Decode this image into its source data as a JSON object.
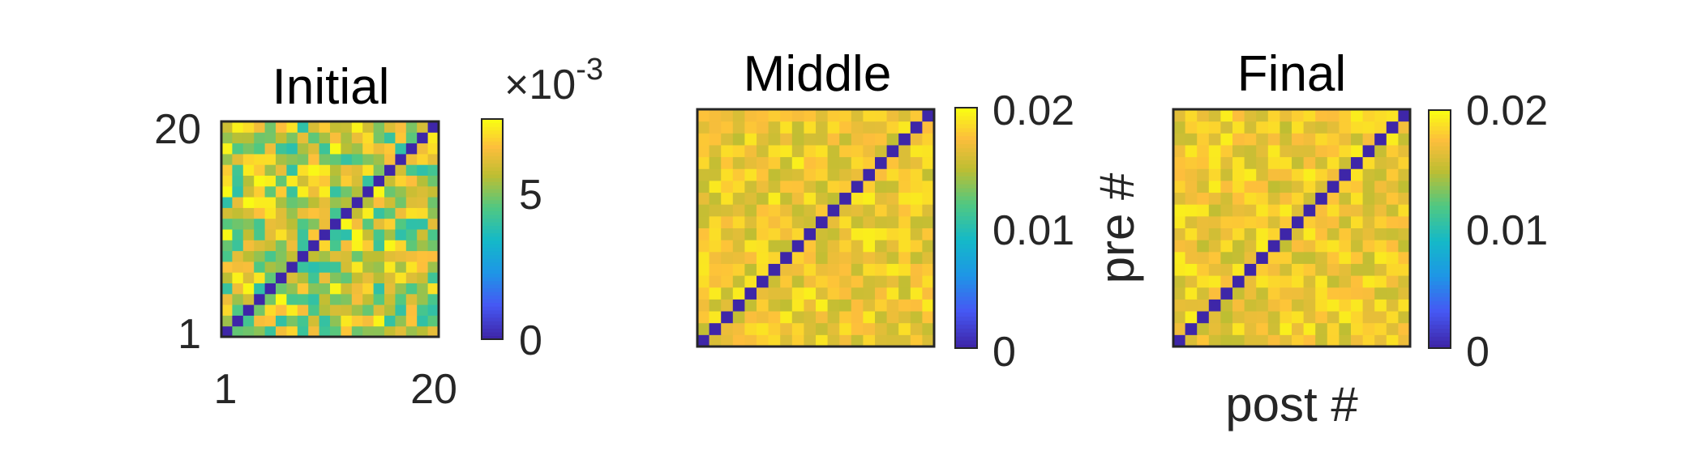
{
  "chart_data": [
    {
      "type": "heatmap",
      "title": "Initial",
      "n": 20,
      "diagonal_value": 0,
      "offdiag_range": [
        0.0038,
        0.0075
      ],
      "clim": [
        0,
        0.0075
      ],
      "x_ticks": [
        "1",
        "20"
      ],
      "y_ticks": [
        "1",
        "20"
      ],
      "colorbar": {
        "ticks": [
          "0",
          "5"
        ],
        "multiplier": "×10",
        "exponent": "-3"
      },
      "xlabel": "",
      "ylabel": ""
    },
    {
      "type": "heatmap",
      "title": "Middle",
      "n": 20,
      "diagonal_value": 0,
      "offdiag_range": [
        0.0165,
        0.0215
      ],
      "clim": [
        0,
        0.022
      ],
      "x_ticks": [],
      "y_ticks": [],
      "colorbar": {
        "ticks": [
          "0",
          "0.01",
          "0.02"
        ]
      },
      "xlabel": "",
      "ylabel": ""
    },
    {
      "type": "heatmap",
      "title": "Final",
      "n": 20,
      "diagonal_value": 0,
      "offdiag_range": [
        0.0165,
        0.0215
      ],
      "clim": [
        0,
        0.022
      ],
      "x_ticks": [],
      "y_ticks": [],
      "colorbar": {
        "ticks": [
          "0",
          "0.01",
          "0.02"
        ]
      },
      "xlabel": "post #",
      "ylabel": "pre #"
    }
  ],
  "colormap": "parula"
}
